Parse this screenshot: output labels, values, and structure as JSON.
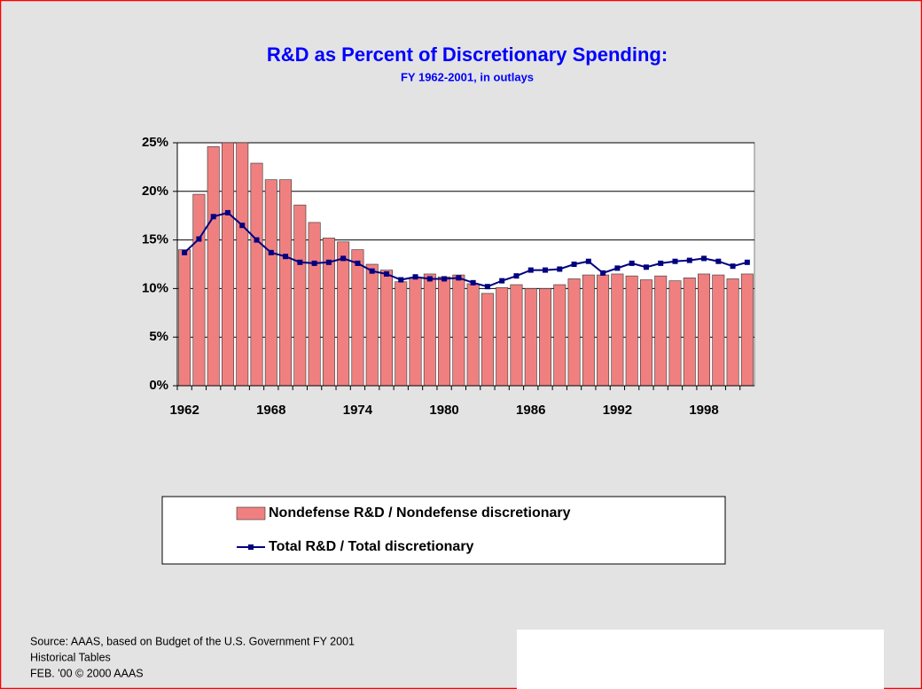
{
  "chart_data": {
    "type": "bar_line",
    "title": "R&D as Percent of Discretionary Spending:",
    "subtitle": "FY 1962-2001, in outlays",
    "categories": [
      "1962",
      null,
      null,
      null,
      null,
      null,
      "1968",
      null,
      null,
      null,
      null,
      null,
      "1974",
      null,
      null,
      null,
      null,
      null,
      "1980",
      null,
      null,
      null,
      null,
      null,
      "1986",
      null,
      null,
      null,
      null,
      null,
      "1992",
      null,
      null,
      null,
      null,
      null,
      "1998",
      null,
      null,
      null
    ],
    "series": [
      {
        "name": "Nondefense R&D / Nondefense discretionary",
        "type": "bar",
        "color": "#f08080",
        "values": [
          14.0,
          19.7,
          24.6,
          25.0,
          25.0,
          22.9,
          21.2,
          21.2,
          18.6,
          16.8,
          15.2,
          14.8,
          14.0,
          12.5,
          11.9,
          10.7,
          11.1,
          11.5,
          11.2,
          11.4,
          10.5,
          9.5,
          10.1,
          10.4,
          10.0,
          10.0,
          10.4,
          11.0,
          11.4,
          11.4,
          11.5,
          11.3,
          10.9,
          11.3,
          10.8,
          11.1,
          11.5,
          11.4,
          11.0,
          11.5
        ]
      },
      {
        "name": "Total R&D / Total discretionary",
        "type": "line",
        "color": "#000080",
        "values": [
          13.7,
          15.1,
          17.4,
          17.8,
          16.5,
          15.0,
          13.7,
          13.3,
          12.7,
          12.6,
          12.7,
          13.1,
          12.6,
          11.8,
          11.5,
          10.9,
          11.2,
          11.0,
          11.0,
          11.1,
          10.6,
          10.2,
          10.8,
          11.3,
          11.9,
          11.9,
          12.0,
          12.5,
          12.8,
          11.6,
          12.1,
          12.6,
          12.2,
          12.6,
          12.8,
          12.9,
          13.1,
          12.8,
          12.3,
          12.7
        ]
      }
    ],
    "ylim": [
      0,
      25
    ],
    "yticks": [
      {
        "value": 0,
        "label": "0%"
      },
      {
        "value": 5,
        "label": "5%"
      },
      {
        "value": 10,
        "label": "10%"
      },
      {
        "value": 15,
        "label": "15%"
      },
      {
        "value": 20,
        "label": "20%"
      },
      {
        "value": 25,
        "label": "25%"
      }
    ],
    "grid": true,
    "legend": "bottom",
    "source": [
      "Source: AAAS, based on Budget of the U.S. Government FY 2001",
      "Historical Tables",
      "FEB. '00 © 2000 AAAS"
    ]
  }
}
